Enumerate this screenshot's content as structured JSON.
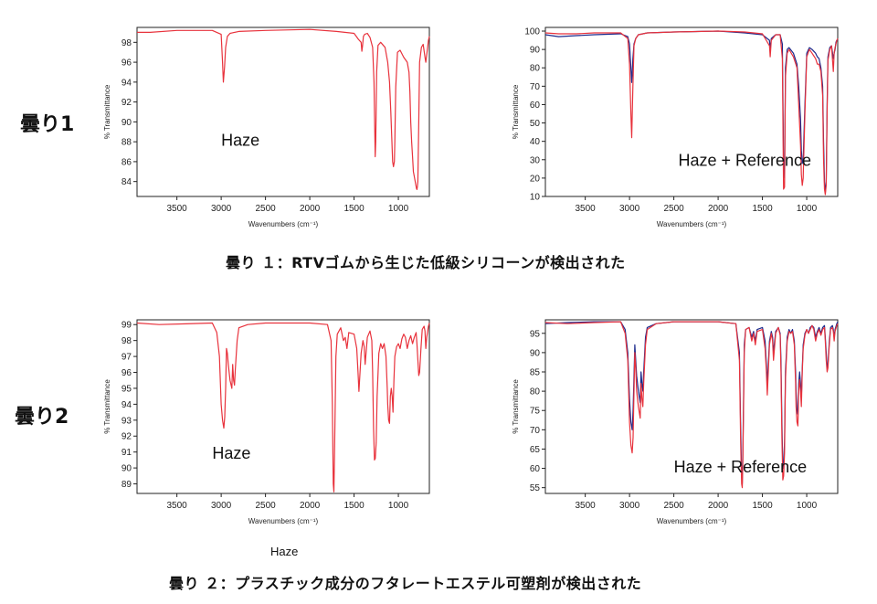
{
  "row_labels": [
    "曇り1",
    "曇り2"
  ],
  "captions": [
    "曇り １：RTVゴムから生じた低級シリコーンが検出された",
    "曇り ２：プラスチック成分のフタレートエステル可塑剤が検出された"
  ],
  "under_text": "Haze",
  "colors": {
    "haze": "#e8323c",
    "reference": "#1c2a8c",
    "frame": "#222222"
  },
  "chart_data": [
    {
      "id": "c1",
      "type": "line",
      "xlabel": "Wavenumbers (cm⁻¹)",
      "ylabel": "% Transmittance",
      "inner_label": "Haze",
      "xlim": [
        3950,
        650
      ],
      "ylim": [
        82.5,
        99.5
      ],
      "xticks": [
        3500,
        3000,
        2500,
        2000,
        1500,
        1000
      ],
      "yticks": [
        84,
        86,
        88,
        90,
        92,
        94,
        96,
        98
      ],
      "series": [
        {
          "role": "haze",
          "x": [
            3950,
            3800,
            3500,
            3100,
            3000,
            2985,
            2975,
            2962,
            2950,
            2930,
            2900,
            2800,
            2500,
            2000,
            1700,
            1500,
            1450,
            1420,
            1412,
            1405,
            1395,
            1380,
            1350,
            1320,
            1290,
            1275,
            1262,
            1255,
            1245,
            1230,
            1200,
            1150,
            1120,
            1100,
            1085,
            1075,
            1065,
            1055,
            1045,
            1040,
            1030,
            1010,
            980,
            940,
            900,
            880,
            870,
            860,
            850,
            840,
            830,
            820,
            810,
            800,
            795,
            790,
            785,
            780,
            770,
            760,
            740,
            720,
            700,
            690,
            670,
            660,
            650
          ],
          "y": [
            99,
            99,
            99.2,
            99.2,
            98.8,
            96,
            94,
            95.5,
            97.5,
            98.6,
            98.9,
            99.1,
            99.2,
            99.3,
            99.1,
            98.9,
            98.3,
            98.0,
            97.1,
            97.6,
            98.6,
            98.8,
            98.9,
            98.5,
            97.5,
            94,
            86.5,
            88,
            95,
            97.7,
            98,
            97.5,
            96,
            94,
            91,
            88.5,
            86,
            85.5,
            86,
            88,
            93.5,
            97,
            97.2,
            96.5,
            96,
            95,
            93,
            90,
            88,
            86.5,
            85,
            84.5,
            84,
            83.5,
            83.3,
            83.2,
            83.5,
            84,
            90,
            96,
            97.5,
            97.8,
            96.5,
            96.0,
            97.5,
            98.2,
            98.6
          ]
        }
      ]
    },
    {
      "id": "c2",
      "type": "line",
      "xlabel": "Wavenumbers (cm⁻¹)",
      "ylabel": "% Transmittance",
      "inner_label": "Haze + Reference",
      "xlim": [
        3950,
        650
      ],
      "ylim": [
        10,
        102
      ],
      "xticks": [
        3500,
        3000,
        2500,
        2000,
        1500,
        1000
      ],
      "yticks": [
        10,
        20,
        30,
        40,
        50,
        60,
        70,
        80,
        90,
        100
      ],
      "series": [
        {
          "role": "reference",
          "x": [
            3950,
            3800,
            3600,
            3400,
            3100,
            3020,
            3000,
            2985,
            2975,
            2962,
            2950,
            2930,
            2900,
            2800,
            2500,
            2000,
            1700,
            1500,
            1420,
            1412,
            1400,
            1350,
            1300,
            1275,
            1262,
            1250,
            1240,
            1220,
            1200,
            1150,
            1110,
            1090,
            1070,
            1060,
            1050,
            1040,
            1020,
            1000,
            970,
            940,
            900,
            880,
            860,
            840,
            820,
            810,
            800,
            790,
            780,
            770,
            760,
            740,
            720,
            700,
            690,
            680,
            670,
            660,
            650
          ],
          "y": [
            98,
            97,
            97.5,
            98,
            98.5,
            97,
            93,
            80,
            72,
            85,
            93,
            96,
            98,
            99,
            99.5,
            100,
            99,
            98,
            95,
            90,
            96,
            98,
            98,
            93,
            30,
            20,
            80,
            90,
            91,
            88,
            82,
            70,
            52,
            35,
            28,
            30,
            60,
            88,
            91,
            90,
            88,
            86,
            85,
            80,
            70,
            40,
            18,
            12,
            18,
            60,
            86,
            91,
            92,
            85,
            88,
            90,
            94,
            95,
            95
          ]
        },
        {
          "role": "haze",
          "x": [
            3950,
            3800,
            3600,
            3400,
            3100,
            3020,
            3000,
            2985,
            2975,
            2962,
            2950,
            2930,
            2900,
            2800,
            2500,
            2000,
            1700,
            1500,
            1420,
            1412,
            1400,
            1350,
            1300,
            1275,
            1262,
            1250,
            1240,
            1220,
            1200,
            1150,
            1110,
            1090,
            1070,
            1060,
            1050,
            1040,
            1020,
            1000,
            970,
            940,
            900,
            880,
            860,
            840,
            820,
            810,
            800,
            790,
            780,
            770,
            760,
            740,
            720,
            700,
            690,
            680,
            670,
            660,
            650
          ],
          "y": [
            99,
            98.5,
            98.5,
            99,
            99,
            96,
            82,
            55,
            42,
            70,
            92,
            96,
            98,
            99,
            99.5,
            100,
            99.5,
            98.5,
            92,
            86,
            95,
            98,
            98,
            85,
            14,
            15,
            75,
            88,
            90,
            86,
            80,
            60,
            38,
            22,
            16,
            20,
            55,
            86,
            90,
            88,
            85,
            82,
            82,
            78,
            65,
            30,
            14,
            11,
            16,
            55,
            84,
            90,
            92,
            78,
            88,
            91,
            93,
            95,
            96
          ]
        }
      ]
    },
    {
      "id": "c3",
      "type": "line",
      "xlabel": "Wavenumbers (cm⁻¹)",
      "ylabel": "% Transmittance",
      "inner_label": "Haze",
      "xlim": [
        3950,
        650
      ],
      "ylim": [
        88.4,
        99.3
      ],
      "xticks": [
        3500,
        3000,
        2500,
        2000,
        1500,
        1000
      ],
      "yticks": [
        89,
        90,
        91,
        92,
        93,
        94,
        95,
        96,
        97,
        98,
        99
      ],
      "series": [
        {
          "role": "haze",
          "x": [
            3950,
            3700,
            3400,
            3100,
            3050,
            3020,
            3000,
            2985,
            2970,
            2960,
            2950,
            2940,
            2930,
            2920,
            2900,
            2880,
            2870,
            2860,
            2850,
            2840,
            2820,
            2800,
            2700,
            2500,
            2200,
            2000,
            1800,
            1760,
            1745,
            1735,
            1728,
            1720,
            1705,
            1690,
            1650,
            1620,
            1600,
            1580,
            1560,
            1500,
            1470,
            1455,
            1445,
            1420,
            1400,
            1385,
            1375,
            1350,
            1320,
            1300,
            1290,
            1280,
            1270,
            1260,
            1250,
            1240,
            1220,
            1200,
            1180,
            1160,
            1140,
            1125,
            1120,
            1110,
            1100,
            1090,
            1080,
            1070,
            1060,
            1050,
            1040,
            1020,
            1000,
            980,
            960,
            940,
            920,
            900,
            880,
            860,
            840,
            820,
            800,
            790,
            780,
            770,
            760,
            745,
            730,
            710,
            700,
            690,
            680,
            660,
            650
          ],
          "y": [
            99.1,
            99,
            99.05,
            99.1,
            98.5,
            97,
            94,
            93,
            92.5,
            93.2,
            95,
            97.5,
            97.2,
            96.5,
            95.5,
            95,
            96.5,
            95.5,
            95.2,
            96.2,
            98,
            98.8,
            99,
            99.1,
            99.1,
            99.1,
            99,
            98,
            94,
            89,
            88.5,
            91,
            97,
            98.4,
            98.8,
            98,
            98.2,
            97.5,
            98.5,
            98.4,
            97.5,
            96,
            94.8,
            97.2,
            98,
            97.6,
            96.5,
            98.2,
            98.6,
            98,
            96,
            92.5,
            90.5,
            90.6,
            91.6,
            94.5,
            97.2,
            97.8,
            97.5,
            97.8,
            97,
            95,
            94,
            93,
            92.8,
            94.5,
            95,
            94.5,
            93.5,
            95.5,
            97,
            97.6,
            97.8,
            97.5,
            98.1,
            98.4,
            98.2,
            97.5,
            98.0,
            98.3,
            97.8,
            98.2,
            98.5,
            97.8,
            96.8,
            95.8,
            96,
            97.5,
            98.7,
            98.9,
            98.6,
            97.5,
            98.2,
            98.9,
            99.1
          ]
        }
      ]
    },
    {
      "id": "c4",
      "type": "line",
      "xlabel": "Wavenumbers (cm⁻¹)",
      "ylabel": "% Transmittance",
      "inner_label": "Haze + Reference",
      "xlim": [
        3950,
        650
      ],
      "ylim": [
        53.5,
        98.5
      ],
      "xticks": [
        3500,
        3000,
        2500,
        2000,
        1500,
        1000
      ],
      "yticks": [
        55,
        60,
        65,
        70,
        75,
        80,
        85,
        90,
        95
      ],
      "series": [
        {
          "role": "reference",
          "x": [
            3950,
            3700,
            3400,
            3100,
            3050,
            3020,
            3000,
            2985,
            2970,
            2960,
            2950,
            2940,
            2930,
            2920,
            2900,
            2880,
            2870,
            2860,
            2850,
            2840,
            2820,
            2800,
            2700,
            2500,
            2200,
            2000,
            1800,
            1760,
            1745,
            1735,
            1728,
            1720,
            1705,
            1690,
            1650,
            1620,
            1600,
            1580,
            1560,
            1500,
            1470,
            1455,
            1445,
            1420,
            1400,
            1385,
            1375,
            1350,
            1320,
            1300,
            1290,
            1280,
            1270,
            1260,
            1250,
            1240,
            1220,
            1200,
            1180,
            1160,
            1140,
            1125,
            1120,
            1110,
            1100,
            1090,
            1080,
            1070,
            1060,
            1050,
            1040,
            1020,
            1000,
            980,
            960,
            940,
            920,
            900,
            880,
            860,
            840,
            820,
            800,
            790,
            780,
            770,
            760,
            745,
            730,
            710,
            700,
            690,
            680,
            660,
            650
          ],
          "y": [
            97.5,
            97.8,
            98,
            98,
            96,
            90,
            78,
            72,
            70,
            75,
            84,
            92,
            88,
            84,
            80,
            77,
            85,
            82,
            80,
            85,
            94,
            96.5,
            97.5,
            98,
            98,
            98,
            97.5,
            90,
            70,
            58,
            56,
            65,
            92,
            96,
            96.5,
            94,
            95.5,
            93,
            96,
            96.5,
            93,
            87,
            82,
            93,
            95.5,
            94,
            90,
            95.5,
            96.5,
            95,
            88,
            72,
            60,
            61,
            67,
            85,
            94,
            96,
            95,
            96,
            93,
            85,
            80,
            75,
            74,
            82,
            85,
            82,
            78,
            86,
            92,
            95,
            96,
            95,
            96.5,
            97,
            96.5,
            94,
            95.5,
            96.5,
            95,
            96.5,
            97,
            94,
            90,
            86,
            87,
            93,
            96.5,
            97,
            96,
            94,
            96,
            97.5,
            98
          ]
        },
        {
          "role": "haze",
          "x": [
            3950,
            3700,
            3400,
            3100,
            3050,
            3020,
            3000,
            2985,
            2970,
            2960,
            2950,
            2940,
            2930,
            2920,
            2900,
            2880,
            2870,
            2860,
            2850,
            2840,
            2820,
            2800,
            2700,
            2500,
            2200,
            2000,
            1800,
            1760,
            1745,
            1735,
            1728,
            1720,
            1705,
            1690,
            1650,
            1620,
            1600,
            1580,
            1560,
            1500,
            1470,
            1455,
            1445,
            1420,
            1400,
            1385,
            1375,
            1350,
            1320,
            1300,
            1290,
            1280,
            1270,
            1260,
            1250,
            1240,
            1220,
            1200,
            1180,
            1160,
            1140,
            1125,
            1120,
            1110,
            1100,
            1090,
            1080,
            1070,
            1060,
            1050,
            1040,
            1020,
            1000,
            980,
            960,
            940,
            920,
            900,
            880,
            860,
            840,
            820,
            800,
            790,
            780,
            770,
            760,
            745,
            730,
            710,
            700,
            690,
            680,
            660,
            650
          ],
          "y": [
            97.8,
            97.5,
            97.8,
            98,
            95,
            88,
            72,
            66,
            64,
            68,
            80,
            90,
            86,
            80,
            76,
            73,
            82,
            78,
            76,
            82,
            92,
            96,
            97.5,
            98,
            98,
            98,
            97.5,
            88,
            66,
            56,
            55,
            62,
            90,
            96,
            96.5,
            93,
            95,
            92,
            95.5,
            96,
            91,
            85,
            79,
            92,
            95,
            93,
            88,
            95,
            96.5,
            94.5,
            85,
            68,
            57,
            58,
            64,
            83,
            93,
            95.5,
            95,
            95.5,
            92,
            82,
            76,
            72,
            71,
            80,
            83,
            80,
            76,
            85,
            91,
            94.5,
            96,
            95,
            96,
            97,
            96,
            93,
            95,
            96,
            94.5,
            96,
            96.5,
            93,
            88,
            85,
            86,
            92,
            96,
            96.5,
            95.5,
            93,
            95.5,
            97,
            97.5
          ]
        }
      ]
    }
  ]
}
